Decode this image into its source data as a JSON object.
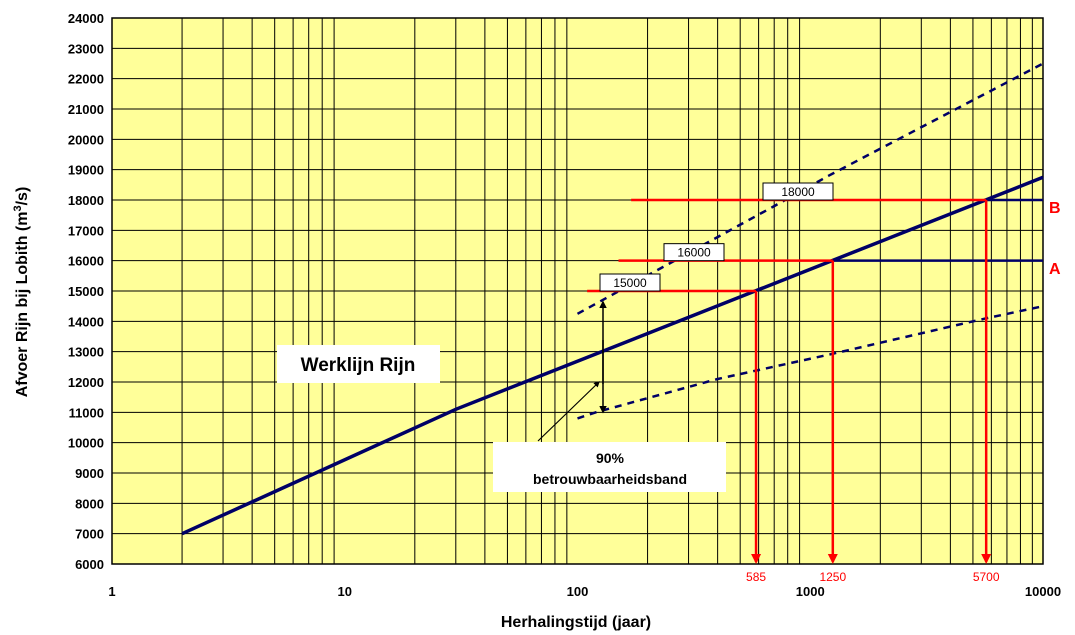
{
  "chart_data": {
    "type": "line",
    "xlabel": "Herhalingstijd (jaar)",
    "ylabel": "Afvoer Rijn bij Lobith (m³/s)",
    "xscale": "log",
    "xlim": [
      1,
      10000
    ],
    "ylim": [
      6000,
      24000
    ],
    "grid": true,
    "background": "#ffff99",
    "x_ticks": [
      "1",
      "10",
      "100",
      "1000",
      "10000"
    ],
    "y_ticks": [
      "6000",
      "7000",
      "8000",
      "9000",
      "10000",
      "11000",
      "12000",
      "13000",
      "14000",
      "15000",
      "16000",
      "17000",
      "18000",
      "19000",
      "20000",
      "21000",
      "22000",
      "23000",
      "24000"
    ],
    "series": [
      {
        "key": "werklijn",
        "color": "#000066",
        "style": "solid",
        "x": [
          2,
          30,
          10000
        ],
        "y": [
          7000,
          11100,
          18750
        ]
      },
      {
        "key": "upper",
        "color": "#000066",
        "style": "dashed",
        "x": [
          100,
          700,
          1200,
          10000
        ],
        "y": [
          14250,
          17800,
          18800,
          22500
        ]
      },
      {
        "key": "lower",
        "color": "#000066",
        "style": "dashed",
        "x": [
          100,
          120,
          400,
          1200,
          5700,
          10000
        ],
        "y": [
          10800,
          11000,
          12100,
          12900,
          14100,
          14500
        ]
      }
    ],
    "red_references": [
      {
        "label": "15000",
        "y": 15000,
        "x_from": 110,
        "x_to": 585
      },
      {
        "label": "16000",
        "y": 16000,
        "x_from": 150,
        "x_to": 1250
      },
      {
        "label": "18000",
        "y": 18000,
        "x_from": 170,
        "x_to": 5700
      }
    ],
    "navy_extensions": [
      {
        "y": 16000,
        "x_from": 1250,
        "x_to": 10000
      },
      {
        "y": 18000,
        "x_from": 5700,
        "x_to": 10000
      }
    ],
    "x_markers": [
      {
        "label": "585",
        "x": 585
      },
      {
        "label": "1250",
        "x": 1250
      },
      {
        "label": "5700",
        "x": 5700
      }
    ],
    "annotations": {
      "werklijn": "Werklijn Rijn",
      "band_line1": "90%",
      "band_line2": "betrouwbaarheidsband",
      "label_A": "A",
      "label_B": "B"
    }
  }
}
